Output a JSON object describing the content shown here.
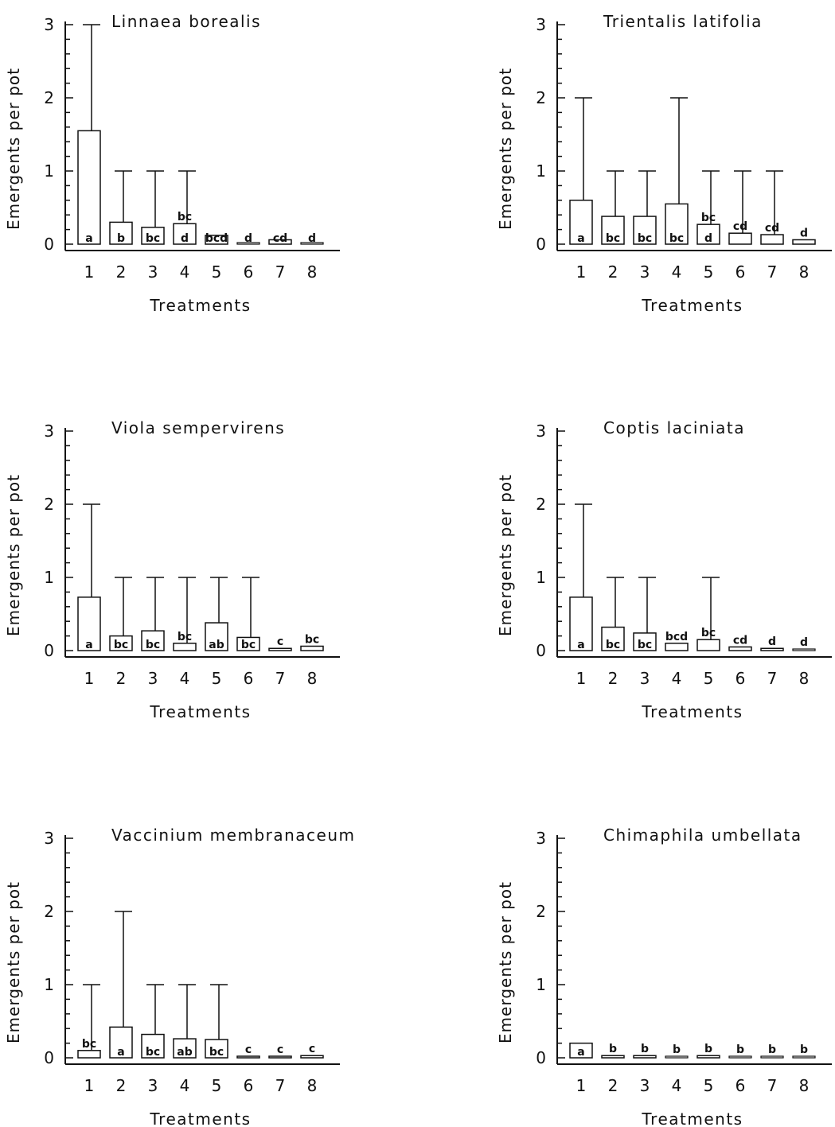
{
  "figure": {
    "x_label": "Treatments",
    "y_label": "Emergents per pot"
  },
  "chart_data": [
    {
      "type": "bar",
      "title": "Linnaea borealis",
      "xlabel": "Treatments",
      "ylabel": "Emergents per pot",
      "categories": [
        "1",
        "2",
        "3",
        "4",
        "5",
        "6",
        "7",
        "8"
      ],
      "values": [
        1.55,
        0.3,
        0.23,
        0.28,
        0.12,
        0.0,
        0.06,
        0.0
      ],
      "error_max": [
        3,
        1,
        1,
        1,
        null,
        null,
        null,
        null
      ],
      "letters": [
        "a",
        "b",
        "bc",
        "d",
        "bcd",
        "d",
        "cd",
        "d"
      ],
      "letters_above": [
        "",
        "",
        "",
        "bc",
        "",
        "",
        "",
        ""
      ],
      "ylim": [
        0,
        3
      ],
      "yticks": [
        "0",
        "1",
        "2",
        "3"
      ]
    },
    {
      "type": "bar",
      "title": "Trientalis latifolia",
      "xlabel": "Treatments",
      "ylabel": "Emergents per pot",
      "categories": [
        "1",
        "2",
        "3",
        "4",
        "5",
        "6",
        "7",
        "8"
      ],
      "values": [
        0.6,
        0.38,
        0.38,
        0.55,
        0.27,
        0.15,
        0.13,
        0.06
      ],
      "error_max": [
        2,
        1,
        1,
        2,
        1,
        1,
        1,
        null
      ],
      "letters": [
        "a",
        "bc",
        "bc",
        "bc",
        "d",
        "",
        "",
        ""
      ],
      "letters_above": [
        "",
        "",
        "",
        "",
        "bc",
        "cd",
        "cd",
        "d"
      ],
      "ylim": [
        0,
        3
      ],
      "yticks": [
        "0",
        "1",
        "2",
        "3"
      ]
    },
    {
      "type": "bar",
      "title": "Viola sempervirens",
      "xlabel": "Treatments",
      "ylabel": "Emergents per pot",
      "categories": [
        "1",
        "2",
        "3",
        "4",
        "5",
        "6",
        "7",
        "8"
      ],
      "values": [
        0.73,
        0.2,
        0.27,
        0.1,
        0.38,
        0.18,
        0.03,
        0.06
      ],
      "error_max": [
        2,
        1,
        1,
        1,
        1,
        1,
        null,
        null
      ],
      "letters": [
        "a",
        "bc",
        "bc",
        "",
        "ab",
        "bc",
        "",
        ""
      ],
      "letters_above": [
        "",
        "",
        "",
        "bc",
        "",
        "",
        "c",
        "bc"
      ],
      "ylim": [
        0,
        3
      ],
      "yticks": [
        "0",
        "1",
        "2",
        "3"
      ]
    },
    {
      "type": "bar",
      "title": "Coptis laciniata",
      "xlabel": "Treatments",
      "ylabel": "Emergents per pot",
      "categories": [
        "1",
        "2",
        "3",
        "4",
        "5",
        "6",
        "7",
        "8"
      ],
      "values": [
        0.73,
        0.32,
        0.24,
        0.1,
        0.15,
        0.05,
        0.03,
        0.0
      ],
      "error_max": [
        2,
        1,
        1,
        null,
        1,
        null,
        null,
        null
      ],
      "letters": [
        "a",
        "bc",
        "bc",
        "",
        "",
        "",
        "",
        ""
      ],
      "letters_above": [
        "",
        "",
        "",
        "bcd",
        "bc",
        "cd",
        "d",
        "d"
      ],
      "ylim": [
        0,
        3
      ],
      "yticks": [
        "0",
        "1",
        "2",
        "3"
      ]
    },
    {
      "type": "bar",
      "title": "Vaccinium membranaceum",
      "xlabel": "Treatments",
      "ylabel": "Emergents per pot",
      "categories": [
        "1",
        "2",
        "3",
        "4",
        "5",
        "6",
        "7",
        "8"
      ],
      "values": [
        0.1,
        0.42,
        0.32,
        0.26,
        0.25,
        0.02,
        0.02,
        0.03
      ],
      "error_max": [
        1,
        2,
        1,
        1,
        1,
        null,
        null,
        null
      ],
      "letters": [
        "",
        "a",
        "bc",
        "ab",
        "bc",
        "",
        "",
        ""
      ],
      "letters_above": [
        "bc",
        "",
        "",
        "",
        "",
        "c",
        "c",
        "c"
      ],
      "ylim": [
        0,
        3
      ],
      "yticks": [
        "0",
        "1",
        "2",
        "3"
      ]
    },
    {
      "type": "bar",
      "title": "Chimaphila umbellata",
      "xlabel": "Treatments",
      "ylabel": "Emergents per pot",
      "categories": [
        "1",
        "2",
        "3",
        "4",
        "5",
        "6",
        "7",
        "8"
      ],
      "values": [
        0.2,
        0.03,
        0.03,
        0.0,
        0.03,
        0.0,
        0.0,
        0.0
      ],
      "error_max": [
        null,
        null,
        null,
        null,
        null,
        null,
        null,
        null
      ],
      "letters": [
        "a",
        "",
        "",
        "",
        "",
        "",
        "",
        ""
      ],
      "letters_above": [
        "",
        "b",
        "b",
        "b",
        "b",
        "b",
        "b",
        "b"
      ],
      "ylim": [
        0,
        3
      ],
      "yticks": [
        "0",
        "1",
        "2",
        "3"
      ]
    }
  ]
}
